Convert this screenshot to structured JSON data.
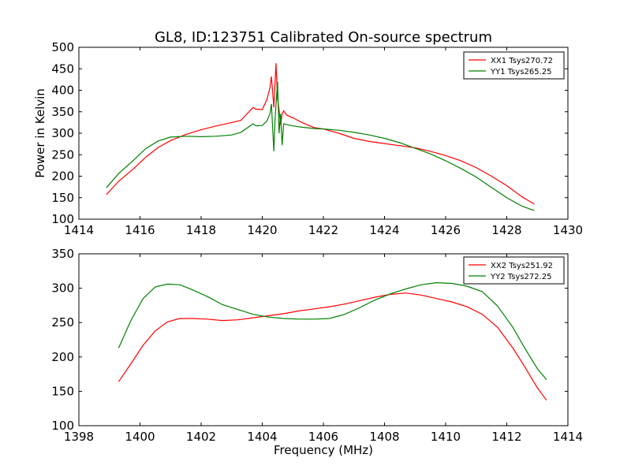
{
  "title": "GL8, ID:123751 Calibrated On-source spectrum",
  "chart_data": [
    {
      "type": "line",
      "title": "GL8, ID:123751 Calibrated On-source spectrum",
      "xlabel": "",
      "ylabel": "Power in Kelvin",
      "xlim": [
        1414,
        1430
      ],
      "ylim": [
        100,
        500
      ],
      "xticks": [
        1414,
        1416,
        1418,
        1420,
        1422,
        1424,
        1426,
        1428,
        1430
      ],
      "yticks": [
        100,
        150,
        200,
        250,
        300,
        350,
        400,
        450,
        500
      ],
      "legend": "top-right",
      "grid": false,
      "series": [
        {
          "name": "XX1 Tsys270.72",
          "color": "#ff0000",
          "x": [
            1414.9,
            1415.3,
            1415.8,
            1416.2,
            1416.6,
            1417.0,
            1417.5,
            1418.0,
            1418.5,
            1419.0,
            1419.3,
            1419.5,
            1419.7,
            1419.8,
            1420.0,
            1420.15,
            1420.25,
            1420.3,
            1420.38,
            1420.45,
            1420.5,
            1420.55,
            1420.6,
            1420.65,
            1420.7,
            1420.8,
            1421.0,
            1421.3,
            1421.7,
            1422.0,
            1422.5,
            1423.0,
            1423.5,
            1424.0,
            1424.5,
            1425.0,
            1425.5,
            1426.0,
            1426.5,
            1427.0,
            1427.5,
            1428.0,
            1428.5,
            1428.9
          ],
          "y": [
            157,
            188,
            218,
            245,
            267,
            283,
            297,
            308,
            317,
            325,
            330,
            345,
            360,
            356,
            355,
            378,
            405,
            432,
            360,
            463,
            380,
            355,
            320,
            345,
            352,
            342,
            336,
            325,
            313,
            310,
            300,
            288,
            281,
            276,
            271,
            266,
            258,
            248,
            236,
            220,
            200,
            178,
            152,
            135
          ]
        },
        {
          "name": "YY1 Tsys265.25",
          "color": "#008000",
          "x": [
            1414.9,
            1415.3,
            1415.8,
            1416.2,
            1416.6,
            1417.0,
            1417.5,
            1418.0,
            1418.5,
            1419.0,
            1419.3,
            1419.5,
            1419.7,
            1419.8,
            1420.0,
            1420.15,
            1420.25,
            1420.3,
            1420.38,
            1420.42,
            1420.5,
            1420.55,
            1420.6,
            1420.65,
            1420.7,
            1420.8,
            1421.0,
            1421.3,
            1421.7,
            1422.0,
            1422.5,
            1423.0,
            1423.5,
            1424.0,
            1424.5,
            1425.0,
            1425.5,
            1426.0,
            1426.5,
            1427.0,
            1427.5,
            1428.0,
            1428.5,
            1428.9
          ],
          "y": [
            173,
            206,
            238,
            265,
            282,
            291,
            293,
            292,
            293,
            296,
            302,
            312,
            322,
            317,
            318,
            328,
            345,
            368,
            258,
            335,
            420,
            300,
            345,
            272,
            322,
            320,
            317,
            314,
            311,
            310,
            307,
            302,
            296,
            288,
            278,
            265,
            252,
            236,
            218,
            198,
            174,
            150,
            130,
            120
          ]
        }
      ]
    },
    {
      "type": "line",
      "title": "",
      "xlabel": "Frequency (MHz)",
      "ylabel": "",
      "xlim": [
        1398,
        1414
      ],
      "ylim": [
        100,
        350
      ],
      "xticks": [
        1398,
        1400,
        1402,
        1404,
        1406,
        1408,
        1410,
        1412,
        1414
      ],
      "yticks": [
        100,
        150,
        200,
        250,
        300,
        350
      ],
      "legend": "top-right",
      "grid": false,
      "series": [
        {
          "name": "XX2 Tsys251.92",
          "color": "#ff0000",
          "x": [
            1399.3,
            1399.7,
            1400.1,
            1400.5,
            1400.9,
            1401.3,
            1401.7,
            1402.2,
            1402.7,
            1403.2,
            1403.7,
            1404.2,
            1404.7,
            1405.2,
            1405.7,
            1406.2,
            1406.7,
            1407.2,
            1407.7,
            1408.2,
            1408.7,
            1409.2,
            1409.7,
            1410.2,
            1410.7,
            1411.2,
            1411.7,
            1412.2,
            1412.6,
            1413.0,
            1413.3
          ],
          "y": [
            164,
            190,
            217,
            238,
            251,
            256,
            256,
            255,
            253,
            254,
            257,
            260,
            263,
            267,
            270,
            273,
            277,
            282,
            287,
            291,
            293,
            290,
            285,
            280,
            273,
            262,
            243,
            213,
            185,
            155,
            137
          ]
        },
        {
          "name": "YY2 Tsys272.25",
          "color": "#008000",
          "x": [
            1399.3,
            1399.7,
            1400.1,
            1400.5,
            1400.9,
            1401.3,
            1401.7,
            1402.2,
            1402.7,
            1403.2,
            1403.7,
            1404.2,
            1404.7,
            1405.2,
            1405.7,
            1406.2,
            1406.7,
            1407.2,
            1407.7,
            1408.2,
            1408.7,
            1409.2,
            1409.7,
            1410.2,
            1410.7,
            1411.2,
            1411.7,
            1412.2,
            1412.6,
            1413.0,
            1413.3
          ],
          "y": [
            213,
            253,
            285,
            302,
            306,
            305,
            298,
            288,
            276,
            269,
            262,
            258,
            256,
            255,
            255,
            256,
            262,
            272,
            283,
            292,
            299,
            305,
            308,
            307,
            303,
            295,
            274,
            243,
            212,
            183,
            167
          ]
        }
      ]
    }
  ]
}
